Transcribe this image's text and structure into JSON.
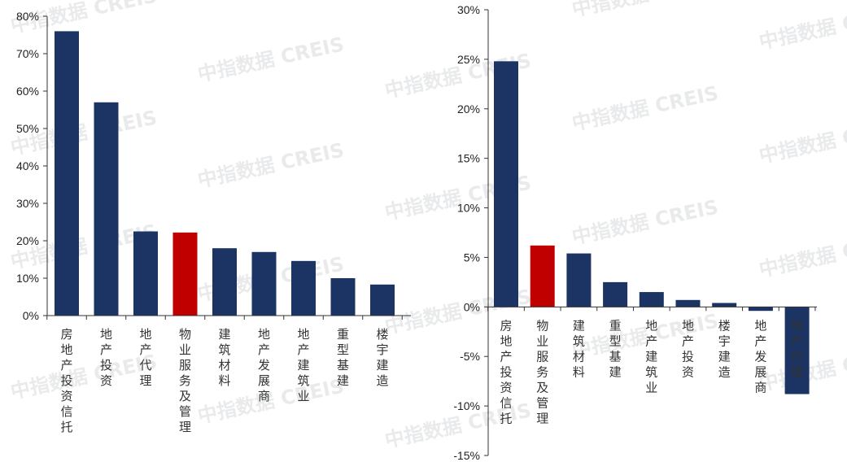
{
  "watermark": "中指数据 CREIS",
  "colors": {
    "navy": "#1b3464",
    "red": "#c00000",
    "axis": "#333333"
  },
  "chart_data": [
    {
      "type": "bar",
      "categories": [
        "房地产投资信托",
        "地产投资",
        "地产代理",
        "物业服务及管理",
        "建筑材料",
        "地产发展商",
        "地产建筑业",
        "重型基建",
        "楼宇建造"
      ],
      "values": [
        76,
        57,
        22.5,
        22.2,
        18,
        17,
        14.6,
        10,
        8.3
      ],
      "highlight": [
        "物业服务及管理"
      ],
      "ylim": [
        0,
        80
      ],
      "yticks": [
        0,
        10,
        20,
        30,
        40,
        50,
        60,
        70,
        80
      ],
      "ytick_labels": [
        "0%",
        "10%",
        "20%",
        "30%",
        "40%",
        "50%",
        "60%",
        "70%",
        "80%"
      ],
      "title": "",
      "xlabel": "",
      "ylabel": "",
      "legend": "none",
      "grid": false
    },
    {
      "type": "bar",
      "categories": [
        "房地产投资信托",
        "物业服务及管理",
        "建筑材料",
        "重型基建",
        "地产建筑业",
        "地产投资",
        "楼宇建造",
        "地产发展商",
        "地产代理"
      ],
      "values": [
        24.8,
        6.2,
        5.4,
        2.5,
        1.5,
        0.7,
        0.4,
        -0.4,
        -8.8
      ],
      "highlight": [
        "物业服务及管理"
      ],
      "ylim": [
        -15,
        30
      ],
      "yticks": [
        -15,
        -10,
        -5,
        0,
        5,
        10,
        15,
        20,
        25,
        30
      ],
      "ytick_labels": [
        "-15%",
        "-10%",
        "-5%",
        "0%",
        "5%",
        "10%",
        "15%",
        "20%",
        "25%",
        "30%"
      ],
      "title": "",
      "xlabel": "",
      "ylabel": "",
      "legend": "none",
      "grid": false
    }
  ]
}
